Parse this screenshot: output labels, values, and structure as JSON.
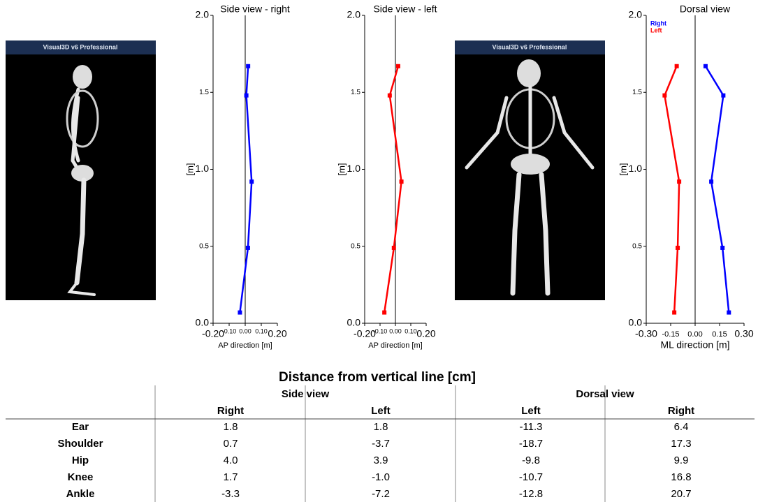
{
  "images": [
    {
      "banner": "Visual3D v6 Professional"
    },
    {
      "banner": "Visual3D v6 Professional"
    }
  ],
  "chart_data": [
    {
      "type": "line",
      "title": "Side view - right",
      "xlabel": "AP direction [m]",
      "ylabel": "[m]",
      "xlim": [
        -0.2,
        0.2
      ],
      "xticks": [
        {
          "value": -0.2,
          "label": "-0.20"
        },
        {
          "value": -0.1,
          "label": "-0.10"
        },
        {
          "value": 0,
          "label": "0.00"
        },
        {
          "value": 0.1,
          "label": "0.10"
        },
        {
          "value": 0.2,
          "label": "0.20"
        }
      ],
      "ylim": [
        0,
        2
      ],
      "yticks": [
        {
          "value": 0,
          "label": "0.0"
        },
        0.5,
        {
          "value": 1,
          "label": "1.0"
        },
        1.5,
        {
          "value": 2,
          "label": "2.0"
        }
      ],
      "series": [
        {
          "color": "#0000ff",
          "x": [
            -0.033,
            0.017,
            0.04,
            0.007,
            0.018
          ],
          "y": [
            0.07,
            0.49,
            0.92,
            1.48,
            1.67
          ]
        }
      ]
    },
    {
      "type": "line",
      "title": "Side view - left",
      "xlabel": "AP direction [m]",
      "ylabel": "[m]",
      "xlim": [
        -0.2,
        0.2
      ],
      "xticks": [
        {
          "value": -0.2,
          "label": "-0.20"
        },
        {
          "value": -0.1,
          "label": "-0.10"
        },
        {
          "value": 0,
          "label": "0.00"
        },
        {
          "value": 0.1,
          "label": "0.10"
        },
        {
          "value": 0.2,
          "label": "0.20"
        }
      ],
      "ylim": [
        0,
        2
      ],
      "yticks": [
        {
          "value": 0,
          "label": "0.0"
        },
        0.5,
        {
          "value": 1,
          "label": "1.0"
        },
        1.5,
        {
          "value": 2,
          "label": "2.0"
        }
      ],
      "series": [
        {
          "color": "#ff0000",
          "x": [
            -0.072,
            -0.01,
            0.039,
            -0.037,
            0.018
          ],
          "y": [
            0.07,
            0.49,
            0.92,
            1.48,
            1.67
          ]
        }
      ]
    },
    {
      "type": "line",
      "title": "Dorsal view",
      "xlabel": "ML direction [m]",
      "ylabel": "[m]",
      "xlim": [
        -0.3,
        0.3
      ],
      "xticks": [
        {
          "value": -0.3,
          "label": "-0.30"
        },
        {
          "value": -0.15,
          "label": "-0.15"
        },
        {
          "value": 0,
          "label": "0.00"
        },
        0.15,
        {
          "value": 0.3,
          "label": "0.30"
        }
      ],
      "ylim": [
        0,
        2
      ],
      "yticks": [
        {
          "value": 0,
          "label": "0.0"
        },
        0.5,
        {
          "value": 1,
          "label": "1.0"
        },
        1.5,
        {
          "value": 2,
          "label": "2.0"
        }
      ],
      "legend": "upper left",
      "series": [
        {
          "name": "Right",
          "color": "#0000ff",
          "x": [
            0.207,
            0.168,
            0.099,
            0.173,
            0.064
          ],
          "y": [
            0.07,
            0.49,
            0.92,
            1.48,
            1.67
          ]
        },
        {
          "name": "Left",
          "color": "#ff0000",
          "x": [
            -0.128,
            -0.107,
            -0.098,
            -0.187,
            -0.113
          ],
          "y": [
            0.07,
            0.49,
            0.92,
            1.48,
            1.67
          ]
        }
      ]
    }
  ],
  "table": {
    "title": "Distance from vertical line [cm]",
    "groups": [
      "Side view",
      "Dorsal view"
    ],
    "columns": [
      "Right",
      "Left",
      "Left",
      "Right"
    ],
    "rows": [
      [
        "Ear",
        "1.8",
        "1.8",
        "-11.3",
        "6.4"
      ],
      [
        "Shoulder",
        "0.7",
        "-3.7",
        "-18.7",
        "17.3"
      ],
      [
        "Hip",
        "4.0",
        "3.9",
        "-9.8",
        "9.9"
      ],
      [
        "Knee",
        "1.7",
        "-1.0",
        "-10.7",
        "16.8"
      ],
      [
        "Ankle",
        "-3.3",
        "-7.2",
        "-12.8",
        "20.7"
      ]
    ]
  }
}
